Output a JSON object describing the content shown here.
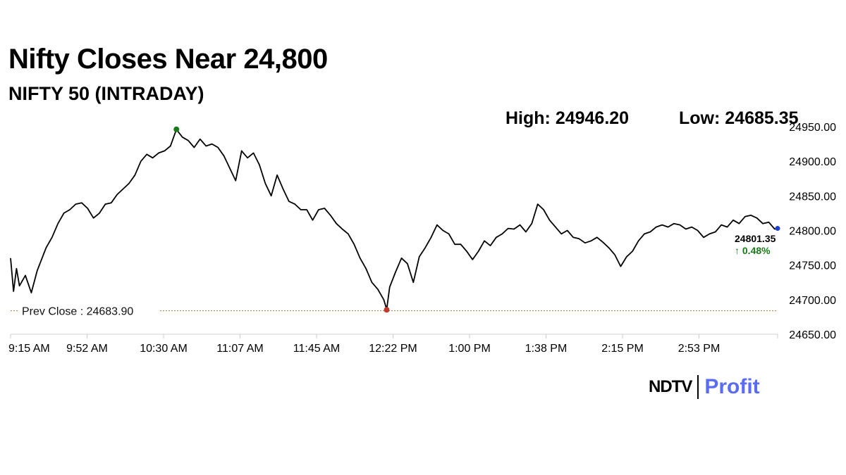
{
  "headline": "Nifty Closes Near 24,800",
  "subheadline": "NIFTY 50 (INTRADAY)",
  "stats": {
    "high": "High: 24946.20",
    "low": "Low: 24685.35"
  },
  "logo": {
    "left": "NDTV",
    "right": "Profit"
  },
  "colors": {
    "line": "#000000",
    "prev_close": "#b07a3c",
    "high_marker": "#1a7a1a",
    "low_marker": "#c0392b",
    "last_marker": "#1f3fd0",
    "up": "#1a7a1a"
  },
  "chart_data": {
    "type": "line",
    "ylim": [
      24650,
      24950
    ],
    "y_ticks": [
      24650,
      24700,
      24750,
      24800,
      24850,
      24900,
      24950
    ],
    "y_tick_labels": [
      "24650.00",
      "24700.00",
      "24750.00",
      "24800.00",
      "24850.00",
      "24900.00",
      "24950.00"
    ],
    "x_tick_labels": [
      "9:15 AM",
      "9:52 AM",
      "10:30 AM",
      "11:07 AM",
      "11:45 AM",
      "12:22 PM",
      "1:00 PM",
      "1:38 PM",
      "2:15 PM",
      "2:53 PM"
    ],
    "prev_close": {
      "value": 24683.9,
      "label": "Prev Close : 24683.90"
    },
    "last": {
      "price": "24801.35",
      "change": "↑ 0.48%"
    },
    "high_point": {
      "x": 56,
      "y": 24946.2
    },
    "low_point": {
      "x": 127,
      "y": 24685.35
    },
    "series": [
      {
        "x": [
          0,
          1,
          2,
          3,
          5,
          7,
          9,
          12,
          14,
          16,
          18,
          20,
          22,
          24,
          26,
          28,
          30,
          32,
          34,
          36,
          38,
          40,
          42,
          44,
          46,
          48,
          50,
          52,
          54,
          56,
          58,
          60,
          62,
          64,
          66,
          68,
          70,
          72,
          74,
          76,
          78,
          80,
          82,
          84,
          86,
          88,
          90,
          92,
          94,
          96,
          98,
          100,
          102,
          104,
          106,
          108,
          110,
          112,
          114,
          116,
          118,
          120,
          122,
          124,
          126,
          127,
          128,
          130,
          132,
          134,
          136,
          138,
          140,
          142,
          144,
          146,
          148,
          150,
          152,
          154,
          156,
          158,
          160,
          162,
          164,
          166,
          168,
          170,
          172,
          174,
          176,
          178,
          180,
          182,
          184,
          186,
          188,
          190,
          192,
          194,
          196,
          198,
          200,
          202,
          204,
          206,
          208,
          210,
          212,
          214,
          216,
          218,
          220,
          222,
          224,
          226,
          228,
          230,
          232,
          234,
          236,
          238,
          240,
          242,
          244,
          246,
          248,
          250,
          252,
          254,
          256,
          258,
          259
        ],
        "y": [
          24760,
          24712,
          24745,
          24720,
          24735,
          24710,
          24742,
          24775,
          24790,
          24810,
          24825,
          24830,
          24838,
          24840,
          24832,
          24818,
          24825,
          24838,
          24840,
          24852,
          24860,
          24868,
          24880,
          24900,
          24910,
          24905,
          24912,
          24915,
          24922,
          24946,
          24935,
          24930,
          24920,
          24932,
          24922,
          24925,
          24920,
          24908,
          24890,
          24872,
          24915,
          24905,
          24912,
          24895,
          24868,
          24850,
          24880,
          24860,
          24842,
          24838,
          24830,
          24830,
          24815,
          24830,
          24832,
          24822,
          24810,
          24802,
          24795,
          24780,
          24760,
          24745,
          24725,
          24715,
          24700,
          24686,
          24718,
          24740,
          24760,
          24752,
          24725,
          24762,
          24775,
          24790,
          24808,
          24800,
          24795,
          24780,
          24780,
          24770,
          24758,
          24770,
          24785,
          24778,
          24790,
          24795,
          24803,
          24802,
          24808,
          24798,
          24810,
          24838,
          24830,
          24815,
          24805,
          24795,
          24800,
          24790,
          24788,
          24782,
          24785,
          24790,
          24783,
          24775,
          24765,
          24748,
          24762,
          24770,
          24785,
          24795,
          24798,
          24805,
          24808,
          24805,
          24810,
          24808,
          24802,
          24805,
          24800,
          24790,
          24795,
          24798,
          24808,
          24805,
          24815,
          24810,
          24820,
          24822,
          24818,
          24810,
          24812,
          24802,
          24803
        ]
      }
    ],
    "grid": false
  }
}
